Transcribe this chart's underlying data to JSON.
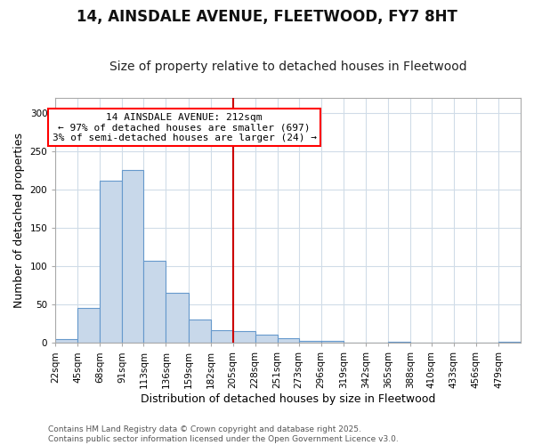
{
  "title": "14, AINSDALE AVENUE, FLEETWOOD, FY7 8HT",
  "subtitle": "Size of property relative to detached houses in Fleetwood",
  "xlabel": "Distribution of detached houses by size in Fleetwood",
  "ylabel": "Number of detached properties",
  "footnote1": "Contains HM Land Registry data © Crown copyright and database right 2025.",
  "footnote2": "Contains public sector information licensed under the Open Government Licence v3.0.",
  "annotation_title": "14 AINSDALE AVENUE: 212sqm",
  "annotation_line1": "← 97% of detached houses are smaller (697)",
  "annotation_line2": "3% of semi-detached houses are larger (24) →",
  "vline_x": 205,
  "bar_color": "#c8d8ea",
  "bar_edgecolor": "#6699cc",
  "vline_color": "#cc0000",
  "categories": [
    "22sqm",
    "45sqm",
    "68sqm",
    "91sqm",
    "113sqm",
    "136sqm",
    "159sqm",
    "182sqm",
    "205sqm",
    "228sqm",
    "251sqm",
    "273sqm",
    "296sqm",
    "319sqm",
    "342sqm",
    "365sqm",
    "388sqm",
    "410sqm",
    "433sqm",
    "456sqm",
    "479sqm"
  ],
  "bin_edges": [
    22,
    45,
    68,
    91,
    113,
    136,
    159,
    182,
    205,
    228,
    251,
    273,
    296,
    319,
    342,
    365,
    388,
    410,
    433,
    456,
    479,
    502
  ],
  "values": [
    5,
    46,
    211,
    225,
    107,
    65,
    30,
    17,
    16,
    11,
    6,
    3,
    3,
    0,
    0,
    2,
    0,
    0,
    0,
    0,
    2
  ],
  "ylim": [
    0,
    320
  ],
  "yticks": [
    0,
    50,
    100,
    150,
    200,
    250,
    300
  ],
  "background_color": "#ffffff",
  "plot_background": "#ffffff",
  "grid_color": "#d0dce8",
  "title_fontsize": 12,
  "subtitle_fontsize": 10,
  "axis_label_fontsize": 9,
  "tick_fontsize": 7.5,
  "annotation_fontsize": 8,
  "footnote_fontsize": 6.5
}
